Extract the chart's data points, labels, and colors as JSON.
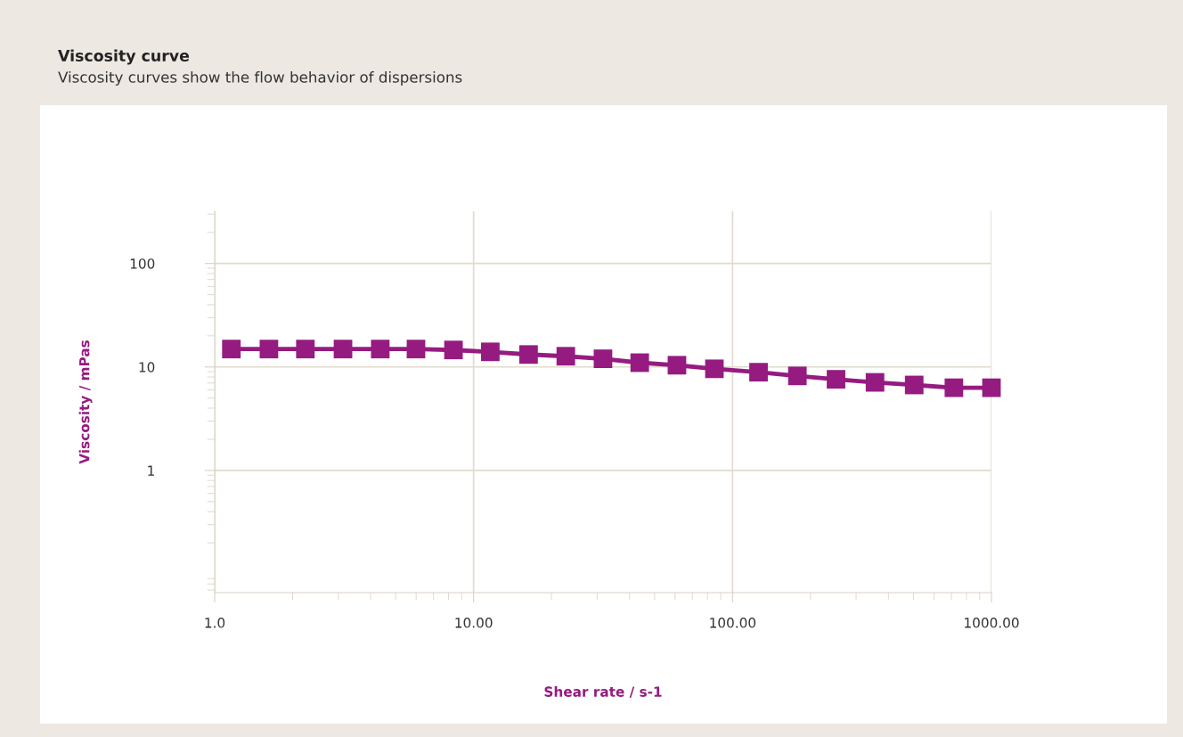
{
  "chart_data": {
    "type": "line",
    "title": "Viscosity curve",
    "subtitle": "Viscosity curves show the flow behavior of dispersions",
    "xlabel": "Shear rate / s-1",
    "ylabel": "Viscosity / mPas",
    "x": [
      1.16,
      1.62,
      2.24,
      3.13,
      4.36,
      5.99,
      8.36,
      11.6,
      16.3,
      22.7,
      31.6,
      43.8,
      61.0,
      85.1,
      126,
      178,
      251,
      355,
      503,
      716,
      1000
    ],
    "series": [
      {
        "color": "#951b81",
        "values": [
          14.9,
          14.9,
          14.9,
          14.9,
          14.9,
          14.9,
          14.6,
          14.0,
          13.2,
          12.7,
          12.0,
          11.0,
          10.4,
          9.6,
          8.9,
          8.2,
          7.6,
          7.1,
          6.7,
          6.3,
          6.3
        ]
      }
    ],
    "log": "xy",
    "xlim": [
      1,
      1000
    ],
    "ylim": [
      0.066,
      320
    ],
    "xticks": [
      {
        "value": 1,
        "label": "1.0"
      },
      {
        "value": 10,
        "label": "10.00"
      },
      {
        "value": 100,
        "label": "100.00"
      },
      {
        "value": 1000,
        "label": "1000.00"
      }
    ],
    "yticks": [
      1,
      10,
      100
    ],
    "grid": true,
    "marker": "square",
    "line_style": "solid",
    "legend": false
  }
}
